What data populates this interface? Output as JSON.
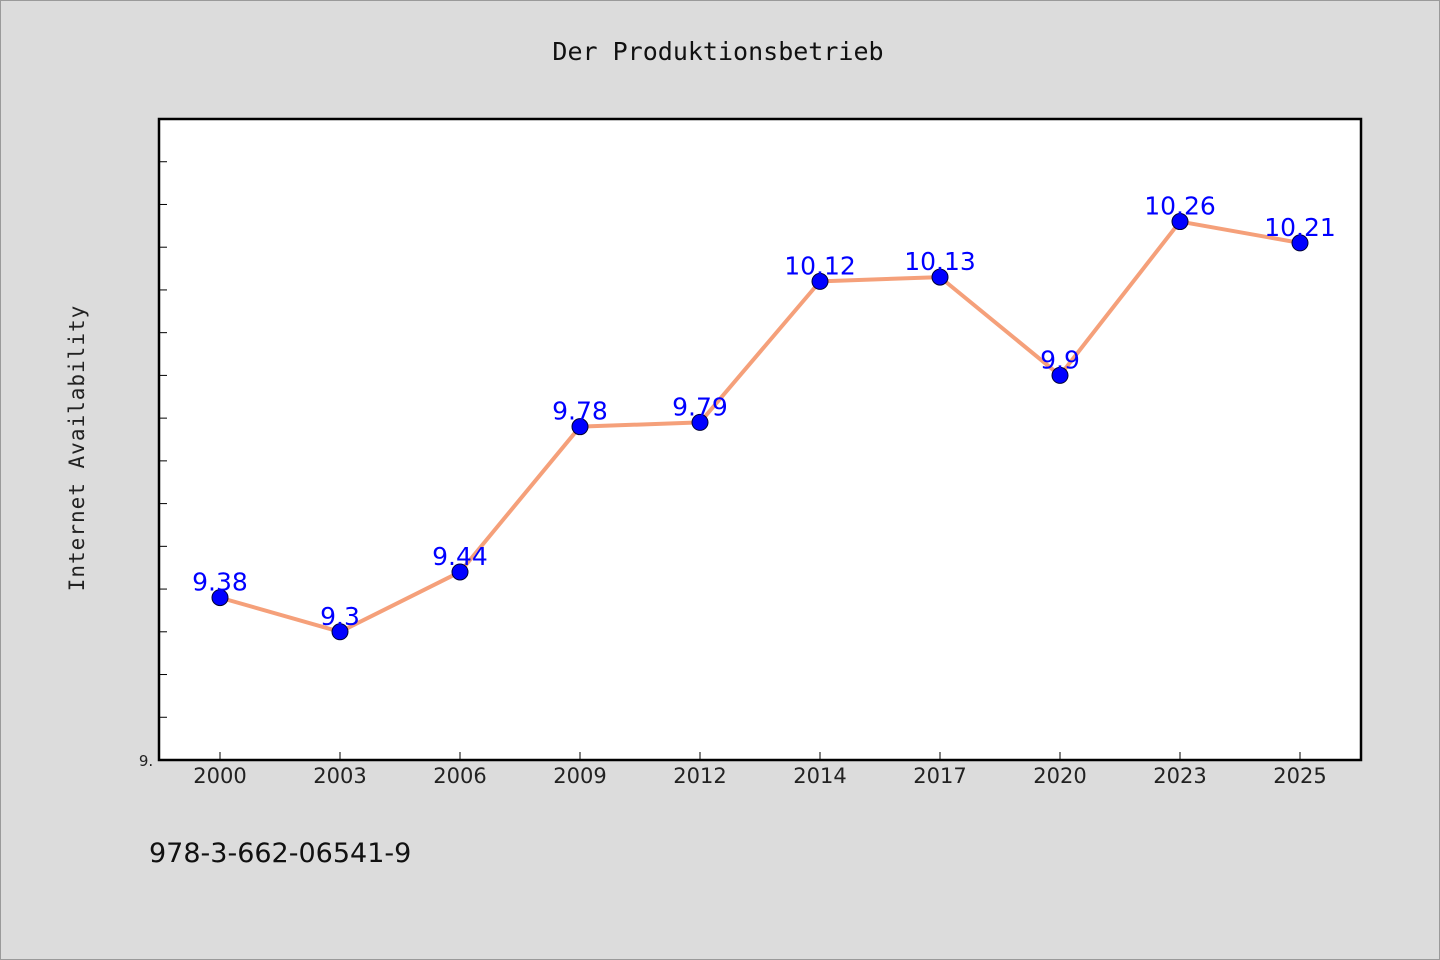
{
  "chart_data": {
    "type": "line",
    "title": "Der Produktionsbetrieb",
    "xlabel": "",
    "ylabel": "Internet Availability",
    "categories": [
      "2000",
      "2003",
      "2006",
      "2009",
      "2012",
      "2014",
      "2017",
      "2020",
      "2023",
      "2025"
    ],
    "series": [
      {
        "values": [
          9.38,
          9.3,
          9.44,
          9.78,
          9.79,
          10.12,
          10.13,
          9.9,
          10.26,
          10.21
        ],
        "data_labels": [
          "9.38",
          "9.3",
          "9.44",
          "9.78",
          "9.79",
          "10.12",
          "10.13",
          "9.9",
          "10.26",
          "10.21"
        ]
      }
    ],
    "ylim": [
      9.0,
      10.5
    ],
    "y_tick_label_shown": "9.",
    "grid": false,
    "line_color": "#f5a07a",
    "marker_color": "#0000ff",
    "label_color": "#0000ff"
  },
  "footer": {
    "code": "978-3-662-06541-9"
  }
}
